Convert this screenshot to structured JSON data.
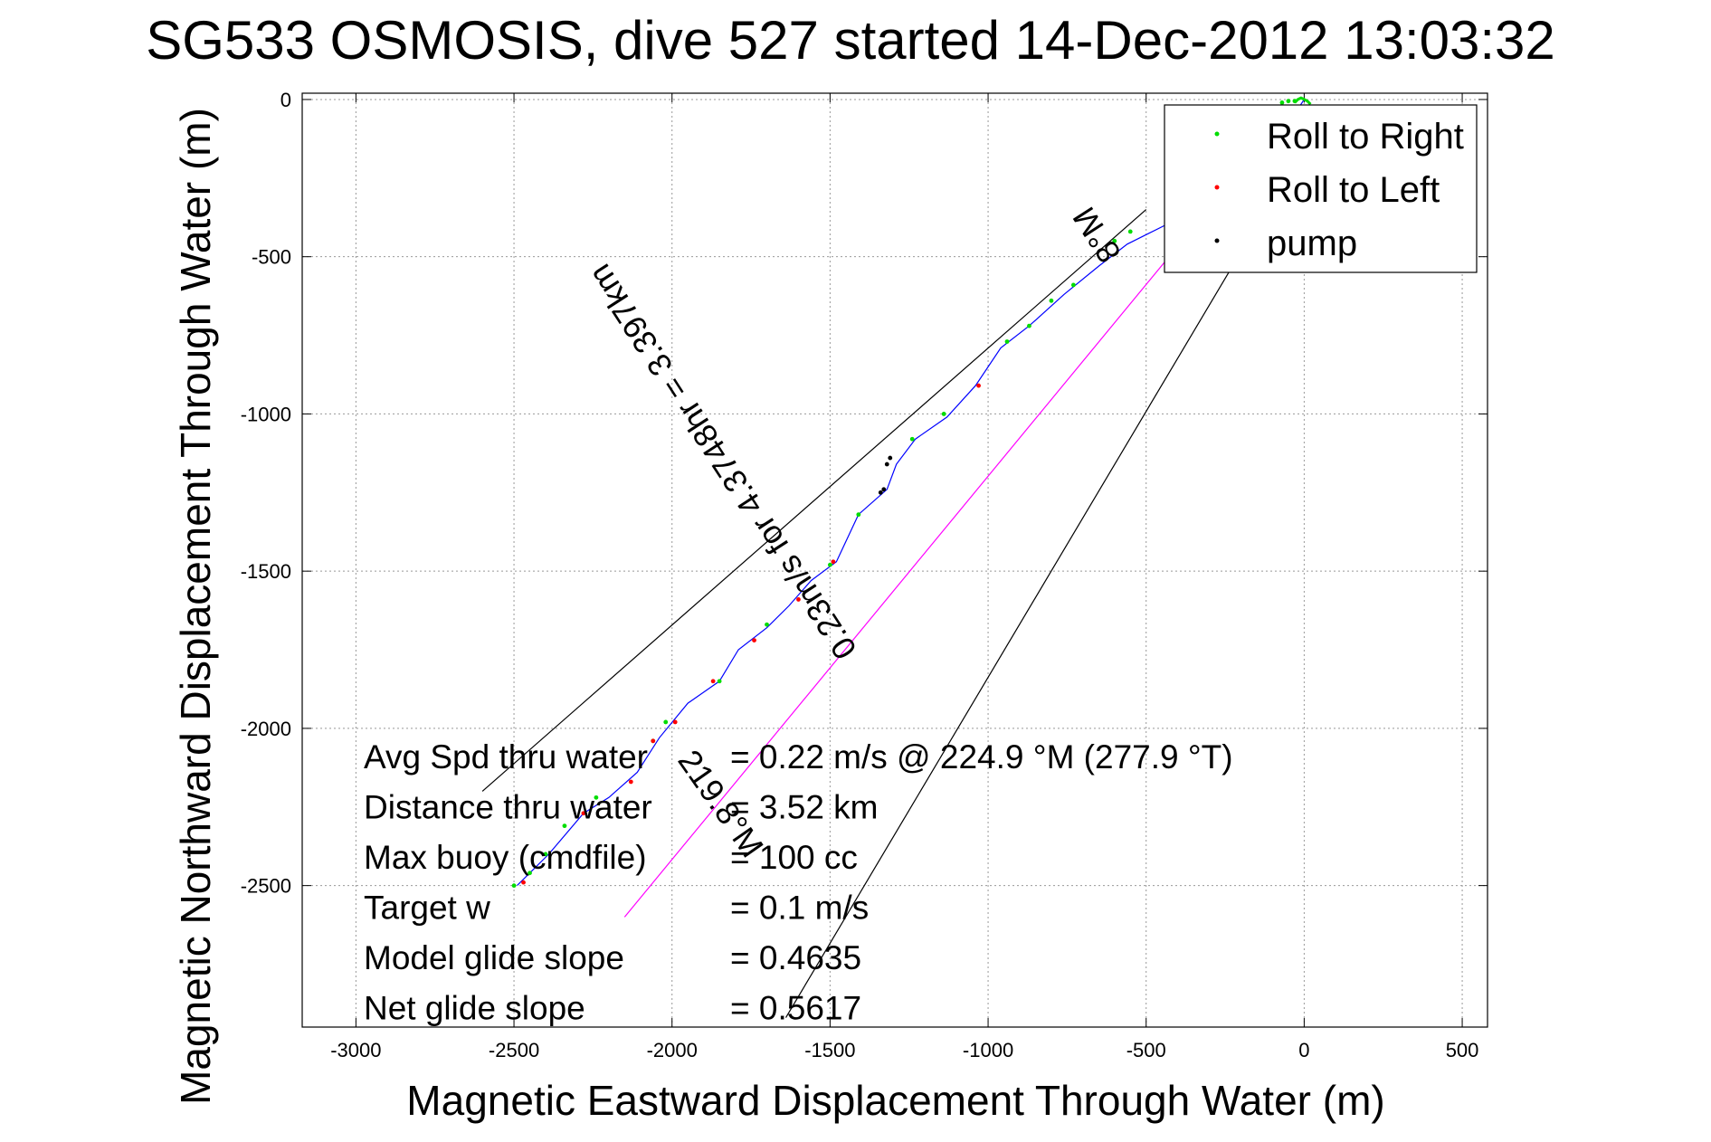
{
  "chart_data": {
    "type": "line",
    "title": "SG533 OSMOSIS, dive 527 started 14-Dec-2012 13:03:32",
    "xlabel": "Magnetic Eastward Displacement Through Water (m)",
    "ylabel": "Magnetic Northward Displacement Through Water (m)",
    "xlim": [
      -3170,
      580
    ],
    "ylim": [
      -2950,
      20
    ],
    "xticks": [
      -3000,
      -2500,
      -2000,
      -1500,
      -1000,
      -500,
      0,
      500
    ],
    "yticks": [
      0,
      -500,
      -1000,
      -1500,
      -2000,
      -2500
    ],
    "grid": true,
    "legend": {
      "placement": "top-right",
      "entries": [
        {
          "label": "Roll to Right",
          "color": "#00dd00"
        },
        {
          "label": "Roll to Left",
          "color": "#ff0000"
        },
        {
          "label": "pump",
          "color": "#000000"
        }
      ]
    },
    "track": {
      "color": "#0000ff",
      "points": [
        [
          0,
          0
        ],
        [
          -40,
          -60
        ],
        [
          -120,
          -150
        ],
        [
          -230,
          -260
        ],
        [
          -330,
          -330
        ],
        [
          -440,
          -400
        ],
        [
          -560,
          -460
        ],
        [
          -650,
          -530
        ],
        [
          -760,
          -620
        ],
        [
          -870,
          -720
        ],
        [
          -960,
          -790
        ],
        [
          -1040,
          -910
        ],
        [
          -1130,
          -1010
        ],
        [
          -1230,
          -1080
        ],
        [
          -1290,
          -1160
        ],
        [
          -1320,
          -1240
        ],
        [
          -1410,
          -1320
        ],
        [
          -1480,
          -1470
        ],
        [
          -1560,
          -1530
        ],
        [
          -1630,
          -1610
        ],
        [
          -1700,
          -1680
        ],
        [
          -1790,
          -1750
        ],
        [
          -1850,
          -1850
        ],
        [
          -1950,
          -1920
        ],
        [
          -2040,
          -2030
        ],
        [
          -2110,
          -2140
        ],
        [
          -2200,
          -2220
        ],
        [
          -2280,
          -2270
        ],
        [
          -2390,
          -2400
        ],
        [
          -2490,
          -2500
        ]
      ]
    },
    "roll_right_points": [
      [
        -550,
        -420
      ],
      [
        -600,
        -450
      ],
      [
        -730,
        -590
      ],
      [
        -800,
        -640
      ],
      [
        -870,
        -720
      ],
      [
        -940,
        -770
      ],
      [
        -1140,
        -1000
      ],
      [
        -1240,
        -1080
      ],
      [
        -1410,
        -1320
      ],
      [
        -1500,
        -1480
      ],
      [
        -1700,
        -1670
      ],
      [
        -1850,
        -1850
      ],
      [
        -2020,
        -1980
      ],
      [
        -2060,
        -2040
      ],
      [
        -2240,
        -2220
      ],
      [
        -2340,
        -2310
      ],
      [
        -2400,
        -2400
      ],
      [
        -2450,
        -2460
      ],
      [
        -2500,
        -2500
      ],
      [
        -30,
        -5
      ],
      [
        -50,
        -5
      ],
      [
        -70,
        -10
      ]
    ],
    "roll_left_points": [
      [
        -1030,
        -910
      ],
      [
        -1490,
        -1470
      ],
      [
        -1600,
        -1590
      ],
      [
        -1740,
        -1720
      ],
      [
        -1870,
        -1850
      ],
      [
        -1990,
        -1980
      ],
      [
        -2060,
        -2040
      ],
      [
        -2130,
        -2170
      ],
      [
        -2280,
        -2270
      ],
      [
        -2470,
        -2490
      ]
    ],
    "pump_points": [
      [
        -1310,
        -1140
      ],
      [
        -1320,
        -1160
      ],
      [
        -1330,
        -1240
      ],
      [
        -1340,
        -1250
      ]
    ],
    "surface_arc": {
      "color": "#00dd00",
      "points": [
        [
          -30,
          -10
        ],
        [
          -20,
          0
        ],
        [
          -10,
          5
        ],
        [
          0,
          0
        ],
        [
          10,
          -5
        ],
        [
          20,
          -15
        ]
      ]
    },
    "course_lines": [
      {
        "color": "#000000",
        "points": [
          [
            -2600,
            -2200
          ],
          [
            -500,
            -350
          ]
        ]
      },
      {
        "color": "#000000",
        "points": [
          [
            -1640,
            -2920
          ],
          [
            -150,
            -400
          ]
        ]
      },
      {
        "color": "#ff00ff",
        "points": [
          [
            -2150,
            -2600
          ],
          [
            -50,
            -40
          ]
        ]
      }
    ],
    "line_annotations": {
      "heading": "219.8°M",
      "speed_distance": "0.23m/s for 4.3748hr = 3.397km",
      "upper_heading": "8°M"
    },
    "stats": [
      {
        "label": "Avg Spd thru water",
        "value": "=  0.22 m/s @ 224.9 °M (277.9 °T)"
      },
      {
        "label": "Distance thru water",
        "value": "=  3.52 km"
      },
      {
        "label": "Max buoy (cmdfile)",
        "value": "= 100 cc"
      },
      {
        "label": "Target w",
        "value": "= 0.1 m/s"
      },
      {
        "label": "Model glide slope",
        "value": "= 0.4635"
      },
      {
        "label": "Net glide slope",
        "value": "= 0.5617"
      }
    ]
  }
}
